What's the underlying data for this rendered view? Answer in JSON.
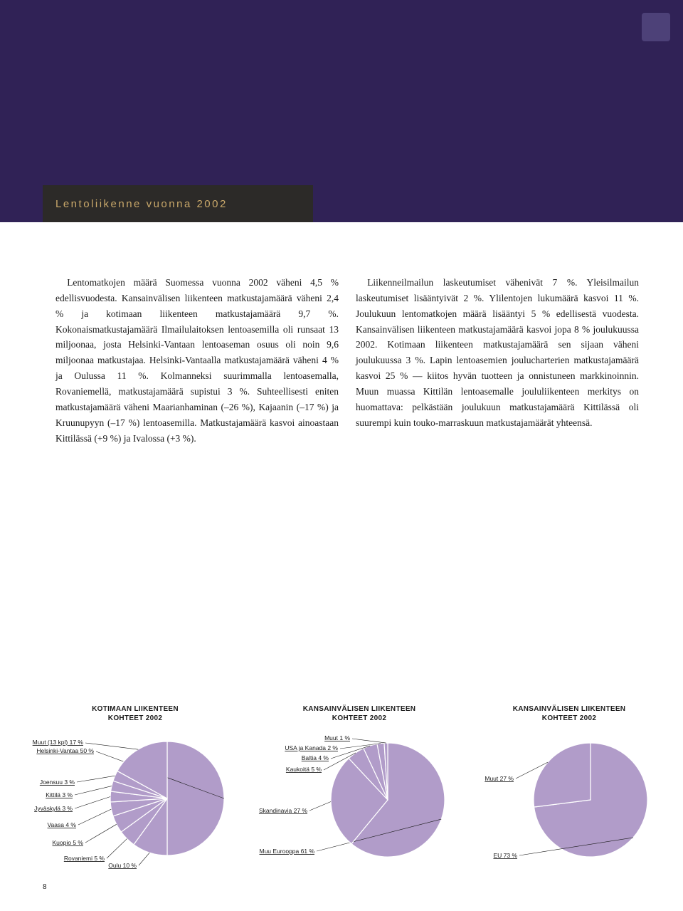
{
  "header": {
    "banner_color": "#302256",
    "title_bar_color": "#2c2a28",
    "title_text_color": "#c9a86a",
    "title": "Lentoliikenne vuonna 2002"
  },
  "text": {
    "col1": "Lentomatkojen määrä Suomessa vuonna 2002 väheni 4,5 % edellisvuodesta. Kansainvälisen liikenteen matkustajamäärä väheni 2,4 % ja kotimaan liikenteen matkustajamäärä 9,7 %. Kokonaismatkustajamäärä Ilmailulaitoksen lentoasemilla oli runsaat 13 miljoonaa, josta Helsinki-Vantaan lentoaseman osuus oli noin 9,6 miljoonaa matkustajaa. Helsinki-Vantaalla matkustajamäärä väheni 4 % ja Oulussa 11 %. Kolmanneksi suurimmalla lentoasemalla, Rovaniemellä, matkustajamäärä supistui 3 %. Suhteellisesti eniten matkustajamäärä väheni Maarianhaminan (–26 %), Kajaanin (–17 %) ja Kruunupyyn (–17 %) lentoasemilla. Matkustajamäärä kasvoi ainoastaan Kittilässä (+9 %) ja Ivalossa (+3 %).",
    "col2": "Liikenneilmailun laskeutumiset vähenivät 7 %. Yleisilmailun laskeutumiset lisääntyivät 2 %. Ylilentojen lukumäärä kasvoi 11 %. Joulukuun lentomatkojen määrä lisääntyi 5 % edellisestä vuodesta. Kansainvälisen liikenteen matkustajamäärä kasvoi jopa 8 % joulukuussa 2002. Kotimaan liikenteen matkustajamäärä sen sijaan väheni joulukuussa 3 %. Lapin lentoasemien joulucharterien matkustajamäärä kasvoi 25 % — kiitos hyvän tuotteen ja onnistuneen markkinoinnin. Muun muassa Kittilän lentoasemalle joululiikenteen merkitys on huomattava: pelkästään joulukuun matkustajamäärä Kittilässä oli suurempi kuin touko-marraskuun matkustajamäärät yhteensä."
  },
  "charts": {
    "pie_fill": "#b19cc9",
    "pie_stroke": "#ffffff",
    "pie_bg": "#ffffff",
    "leader_color": "#1a1a1a",
    "domestic": {
      "title_l1": "KOTIMAAN LIIKENTEEN",
      "title_l2": "KOHTEET 2002",
      "radius": 80,
      "slices": [
        {
          "label": "Helsinki-Vantaa 50 %",
          "value": 50
        },
        {
          "label": "Oulu 10 %",
          "value": 10
        },
        {
          "label": "Rovaniemi 5 %",
          "value": 5
        },
        {
          "label": "Kuopio 5 %",
          "value": 5
        },
        {
          "label": "Vaasa 4 %",
          "value": 4
        },
        {
          "label": "Jyväskylä 3 %",
          "value": 3
        },
        {
          "label": "Kittilä 3 %",
          "value": 3
        },
        {
          "label": "Joensuu 3 %",
          "value": 3
        },
        {
          "label": "Muut (13 kpl) 17 %",
          "value": 17
        }
      ]
    },
    "intl_dest": {
      "title_l1": "KANSAINVÄLISEN LIIKENTEEN",
      "title_l2": "KOHTEET 2002",
      "radius": 80,
      "slices": [
        {
          "label": "Muu Eurooppa 61 %",
          "value": 61
        },
        {
          "label": "Skandinavia 27 %",
          "value": 27
        },
        {
          "label": "Kaukoitä 5 %",
          "value": 5
        },
        {
          "label": "Baltia 4 %",
          "value": 4
        },
        {
          "label": "USA ja Kanada 2 %",
          "value": 2
        },
        {
          "label": "Muut 1 %",
          "value": 1
        }
      ]
    },
    "intl_region": {
      "title_l1": "KANSAINVÄLISEN LIIKENTEEN",
      "title_l2": "KOHTEET 2002",
      "radius": 80,
      "slices": [
        {
          "label": "EU 73 %",
          "value": 73
        },
        {
          "label": "Muut 27 %",
          "value": 27
        }
      ]
    }
  },
  "page_number": "8"
}
